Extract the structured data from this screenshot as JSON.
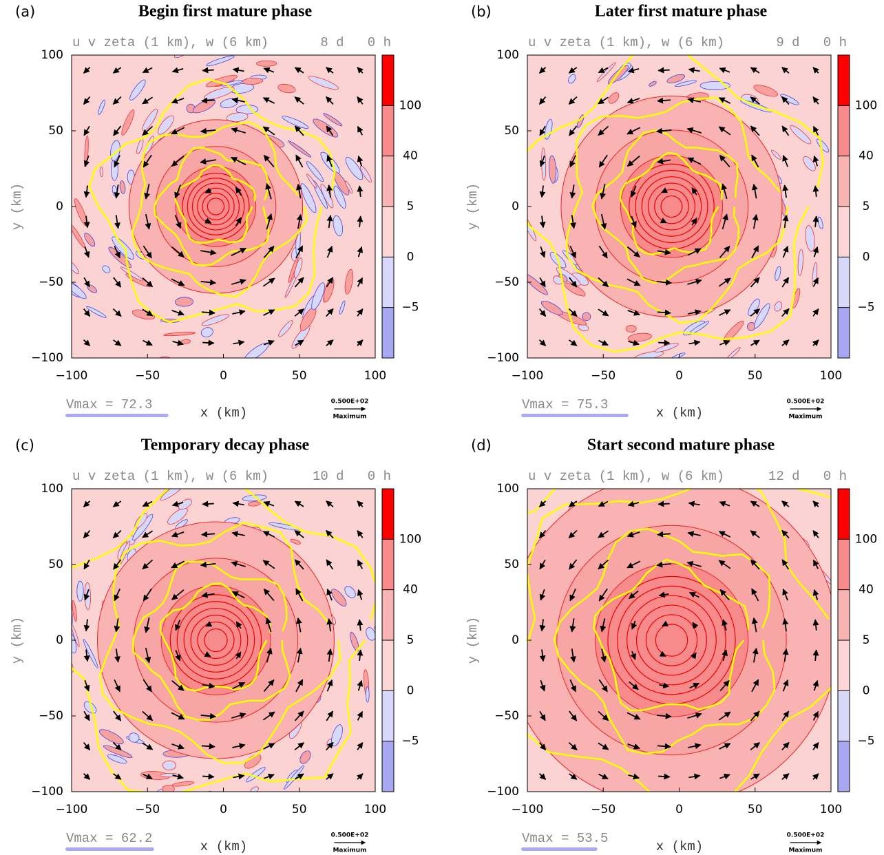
{
  "chart_data": [
    {
      "type": "contour",
      "panel_label": "(a)",
      "title": "Begin first mature phase",
      "subtitle": "u v zeta (1 km), w (6 km)",
      "time_label": "8 d   0 h",
      "xlabel": "x (km)",
      "ylabel": "y (km)",
      "xlim": [
        -100,
        100
      ],
      "ylim": [
        -100,
        100
      ],
      "xticks": [
        {
          "value": -100,
          "label": "−100"
        },
        {
          "value": -50,
          "label": "−50"
        },
        0,
        50,
        100
      ],
      "yticks": [
        {
          "value": -100,
          "label": "−100"
        },
        {
          "value": -50,
          "label": "−50"
        },
        0,
        50,
        100
      ],
      "vmax": 72.3,
      "vmax_label": "Vmax = 72.3",
      "ref_vector": {
        "value": 50,
        "label": "0.500E+02"
      },
      "ref_vector_caption": "Maximum",
      "colorbar": {
        "levels": [
          100,
          40,
          5,
          0,
          {
            "value": -5,
            "label": "−5"
          }
        ],
        "colors": [
          "#ff0000",
          "#f78a8a",
          "#f9b3b3",
          "#fcd6d6",
          "#d8d8fa",
          "#a8a8f2"
        ]
      }
    },
    {
      "type": "contour",
      "panel_label": "(b)",
      "title": "Later first mature phase",
      "subtitle": "u v zeta (1 km), w (6 km)",
      "time_label": "9 d   0 h",
      "xlabel": "x (km)",
      "ylabel": "y (km)",
      "xlim": [
        -100,
        100
      ],
      "ylim": [
        -100,
        100
      ],
      "xticks": [
        {
          "value": -100,
          "label": "−100"
        },
        {
          "value": -50,
          "label": "−50"
        },
        0,
        50,
        100
      ],
      "yticks": [
        {
          "value": -100,
          "label": "−100"
        },
        {
          "value": -50,
          "label": "−50"
        },
        0,
        50,
        100
      ],
      "vmax": 75.3,
      "vmax_label": "Vmax = 75.3",
      "ref_vector": {
        "value": 50,
        "label": "0.500E+02"
      },
      "ref_vector_caption": "Maximum",
      "colorbar": {
        "levels": [
          100,
          40,
          5,
          0,
          {
            "value": -5,
            "label": "−5"
          }
        ],
        "colors": [
          "#ff0000",
          "#f78a8a",
          "#f9b3b3",
          "#fcd6d6",
          "#d8d8fa",
          "#a8a8f2"
        ]
      }
    },
    {
      "type": "contour",
      "panel_label": "(c)",
      "title": "Temporary decay phase",
      "subtitle": "u v zeta (1 km), w (6 km)",
      "time_label": "10 d   0 h",
      "xlabel": "x (km)",
      "ylabel": "y (km)",
      "xlim": [
        -100,
        100
      ],
      "ylim": [
        -100,
        100
      ],
      "xticks": [
        {
          "value": -100,
          "label": "−100"
        },
        {
          "value": -50,
          "label": "−50"
        },
        0,
        50,
        100
      ],
      "yticks": [
        {
          "value": -100,
          "label": "−100"
        },
        {
          "value": -50,
          "label": "−50"
        },
        0,
        50,
        100
      ],
      "vmax": 62.2,
      "vmax_label": "Vmax = 62.2",
      "ref_vector": {
        "value": 50,
        "label": "0.500E+02"
      },
      "ref_vector_caption": "Maximum",
      "colorbar": {
        "levels": [
          100,
          40,
          5,
          0,
          {
            "value": -5,
            "label": "−5"
          }
        ],
        "colors": [
          "#ff0000",
          "#f78a8a",
          "#f9b3b3",
          "#fcd6d6",
          "#d8d8fa",
          "#a8a8f2"
        ]
      }
    },
    {
      "type": "contour",
      "panel_label": "(d)",
      "title": "Start second mature phase",
      "subtitle": "u v zeta (1 km), w (6 km)",
      "time_label": "12 d   0 h",
      "xlabel": "x (km)",
      "ylabel": "y (km)",
      "xlim": [
        -100,
        100
      ],
      "ylim": [
        -100,
        100
      ],
      "xticks": [
        {
          "value": -100,
          "label": "−100"
        },
        {
          "value": -50,
          "label": "−50"
        },
        0,
        50,
        100
      ],
      "yticks": [
        {
          "value": -100,
          "label": "−100"
        },
        {
          "value": -50,
          "label": "−50"
        },
        0,
        50,
        100
      ],
      "vmax": 53.5,
      "vmax_label": "Vmax = 53.5",
      "ref_vector": {
        "value": 50,
        "label": "0.500E+02"
      },
      "ref_vector_caption": "Maximum",
      "colorbar": {
        "levels": [
          100,
          40,
          5,
          0,
          {
            "value": -5,
            "label": "−5"
          }
        ],
        "colors": [
          "#ff0000",
          "#f78a8a",
          "#f9b3b3",
          "#fcd6d6",
          "#d8d8fa",
          "#a8a8f2"
        ]
      }
    }
  ]
}
